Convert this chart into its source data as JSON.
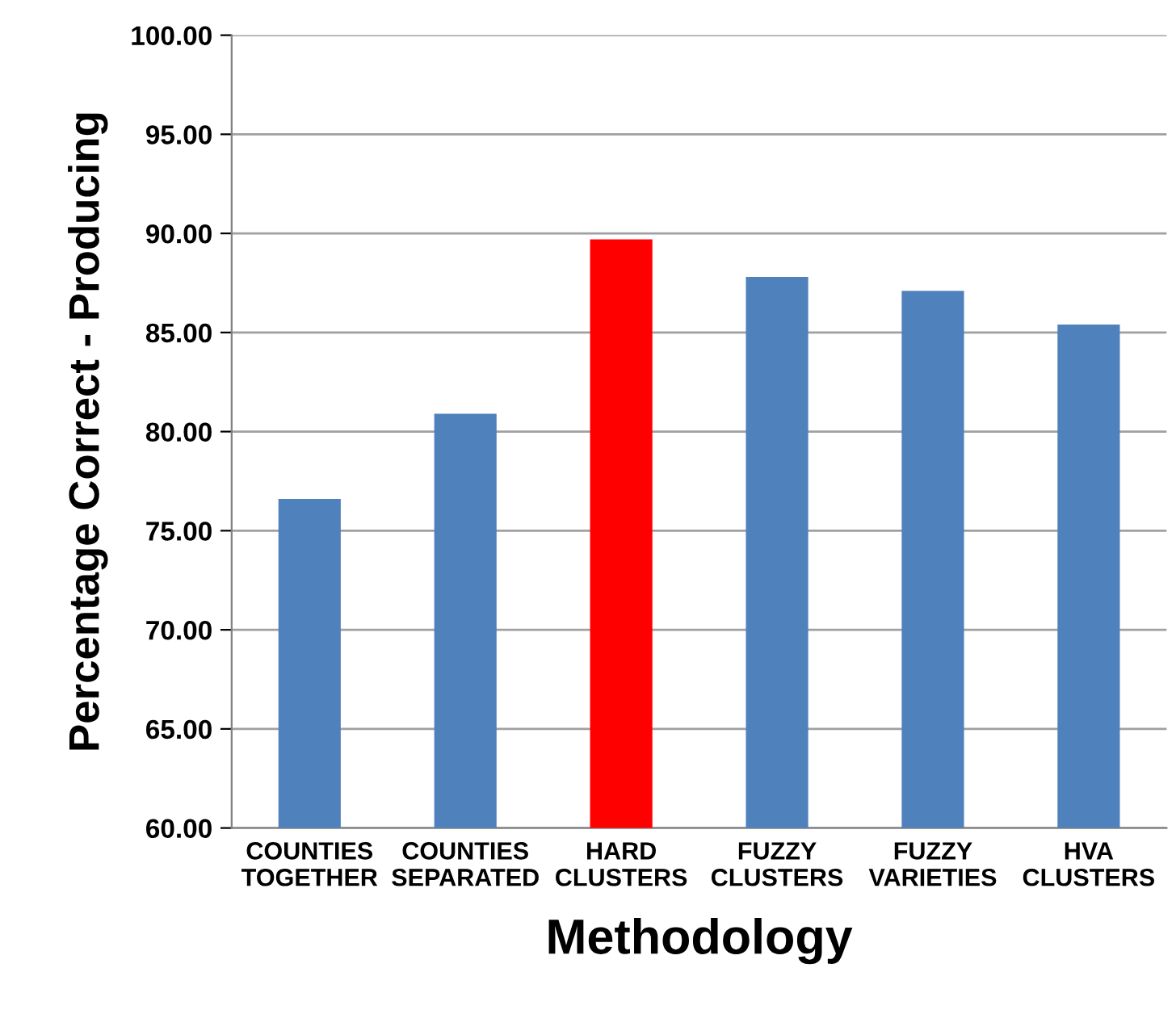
{
  "chart_data": {
    "type": "bar",
    "xlabel": "Methodology",
    "ylabel": "Percentage Correct - Producing",
    "categories": [
      "COUNTIES\nTOGETHER",
      "COUNTIES\nSEPARATED",
      "HARD\nCLUSTERS",
      "FUZZY\nCLUSTERS",
      "FUZZY\nVARIETIES",
      "HVA\nCLUSTERS"
    ],
    "values": [
      76.6,
      80.9,
      89.7,
      87.8,
      87.1,
      85.4
    ],
    "colors": [
      "#4f81bd",
      "#4f81bd",
      "#ff0000",
      "#4f81bd",
      "#4f81bd",
      "#4f81bd"
    ],
    "ylim": [
      60,
      100
    ],
    "yticks": [
      {
        "value": 60,
        "label": "60.00"
      },
      {
        "value": 65,
        "label": "65.00"
      },
      {
        "value": 70,
        "label": "70.00"
      },
      {
        "value": 75,
        "label": "75.00"
      },
      {
        "value": 80,
        "label": "80.00"
      },
      {
        "value": 85,
        "label": "85.00"
      },
      {
        "value": 90,
        "label": "90.00"
      },
      {
        "value": 95,
        "label": "95.00"
      },
      {
        "value": 100,
        "label": "100.00"
      }
    ],
    "grid": "y",
    "legend": false
  }
}
